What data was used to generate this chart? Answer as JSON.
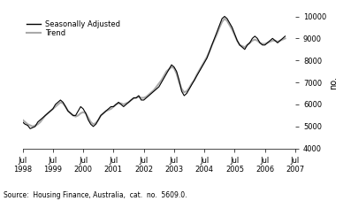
{
  "title": "",
  "ylabel_right": "no.",
  "source_text": "Source:  Housing Finance, Australia,  cat.  no.  5609.0.",
  "legend_entries": [
    "Seasonally Adjusted",
    "Trend"
  ],
  "legend_colors": [
    "#000000",
    "#aaaaaa"
  ],
  "legend_linewidths": [
    1.0,
    1.5
  ],
  "ylim": [
    4000,
    10000
  ],
  "yticks": [
    4000,
    5000,
    6000,
    7000,
    8000,
    9000,
    10000
  ],
  "xtick_labels": [
    "Jul\n1998",
    "Jul\n1999",
    "Jul\n2000",
    "Jul\n2001",
    "Jul\n2002",
    "Jul\n2003",
    "Jul\n2004",
    "Jul\n2005",
    "Jul\n2006",
    "Jul\n2007"
  ],
  "background_color": "#ffffff",
  "line_color_sa": "#000000",
  "line_color_trend": "#aaaaaa",
  "seasonally_adjusted": [
    5200,
    5100,
    5050,
    4900,
    4950,
    5000,
    5200,
    5300,
    5400,
    5500,
    5600,
    5700,
    5800,
    6000,
    6100,
    6200,
    6100,
    5900,
    5700,
    5600,
    5500,
    5500,
    5700,
    5900,
    5800,
    5600,
    5300,
    5100,
    5000,
    5100,
    5300,
    5500,
    5600,
    5700,
    5800,
    5900,
    5900,
    6000,
    6100,
    6000,
    5900,
    6000,
    6100,
    6200,
    6300,
    6300,
    6400,
    6200,
    6200,
    6300,
    6400,
    6500,
    6600,
    6700,
    6800,
    7000,
    7200,
    7400,
    7600,
    7800,
    7700,
    7500,
    7100,
    6600,
    6400,
    6500,
    6700,
    6900,
    7100,
    7300,
    7500,
    7700,
    7900,
    8100,
    8400,
    8700,
    9000,
    9300,
    9600,
    9900,
    10000,
    9900,
    9700,
    9500,
    9200,
    8900,
    8700,
    8600,
    8500,
    8700,
    8800,
    9000,
    9100,
    9000,
    8800,
    8700,
    8700,
    8800,
    8900,
    9000,
    8900,
    8800,
    8900,
    9000,
    9100
  ],
  "trend": [
    5300,
    5200,
    5100,
    5050,
    5000,
    5050,
    5100,
    5200,
    5350,
    5500,
    5600,
    5700,
    5800,
    5900,
    6000,
    6100,
    6050,
    5900,
    5700,
    5600,
    5500,
    5450,
    5500,
    5600,
    5650,
    5600,
    5400,
    5200,
    5100,
    5150,
    5300,
    5500,
    5600,
    5700,
    5750,
    5800,
    5900,
    6000,
    6050,
    6050,
    6000,
    6050,
    6100,
    6200,
    6280,
    6300,
    6350,
    6300,
    6300,
    6350,
    6450,
    6550,
    6650,
    6800,
    6950,
    7100,
    7300,
    7500,
    7600,
    7700,
    7650,
    7400,
    7000,
    6700,
    6550,
    6600,
    6750,
    6950,
    7100,
    7350,
    7550,
    7750,
    7950,
    8150,
    8400,
    8700,
    8950,
    9200,
    9500,
    9750,
    9900,
    9800,
    9600,
    9400,
    9150,
    8900,
    8700,
    8650,
    8600,
    8700,
    8800,
    8900,
    8950,
    8900,
    8800,
    8750,
    8750,
    8800,
    8850,
    8900,
    8900,
    8850,
    8900,
    8950,
    9000
  ]
}
